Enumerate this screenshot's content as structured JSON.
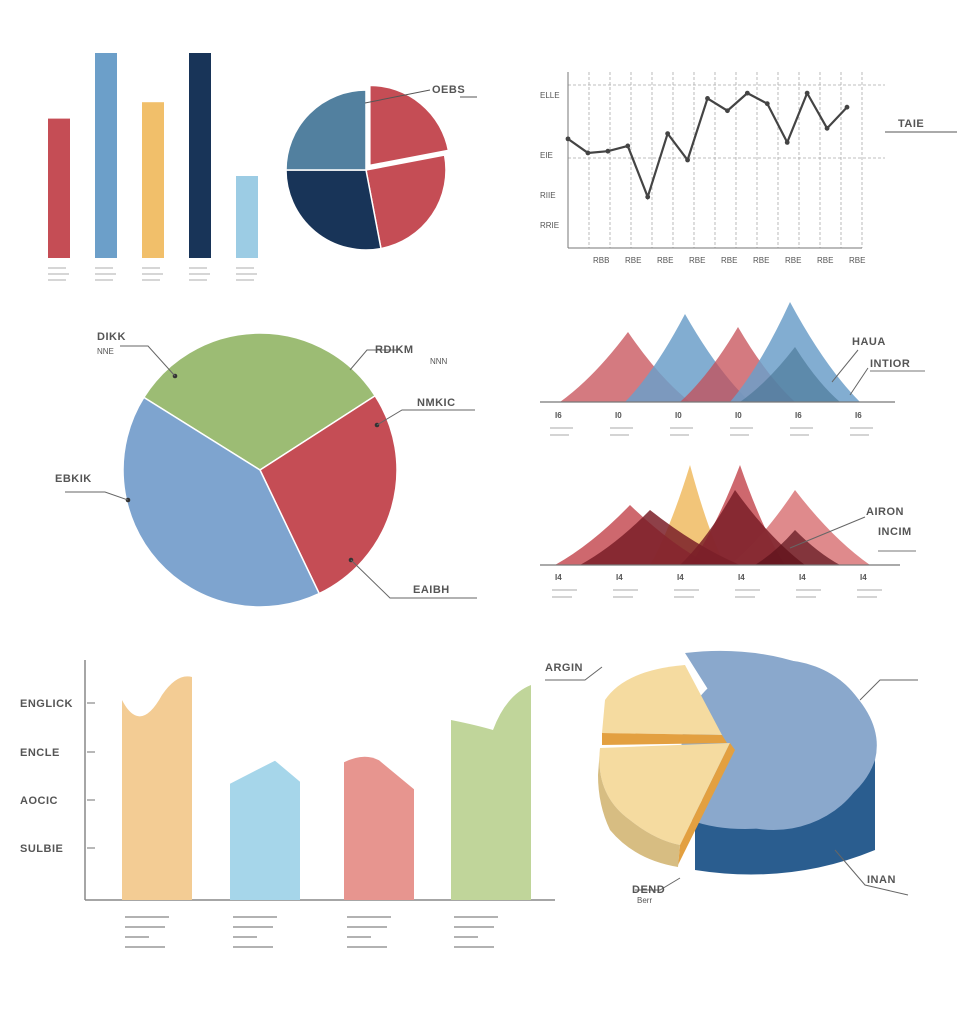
{
  "colors": {
    "red": "#c54d55",
    "blue": "#6c9fc9",
    "yellow": "#f1bf6a",
    "navy": "#183458",
    "lightblue": "#9ccce4",
    "steel": "#52809f",
    "green": "#9cbc74",
    "pieblue": "#7ea4cf",
    "darkred": "#7a1f28",
    "peach": "#f3cc94",
    "sky": "#a6d6ea",
    "salmon": "#e7958f",
    "sage": "#c0d59a",
    "pie3d_top": "#8aa8cc",
    "pie3d_side": "#2a5d8f",
    "pie3d_yellow": "#f5dba0",
    "pie3d_orange": "#e3a040",
    "axis": "#888888",
    "line": "#444444"
  },
  "chart_data": [
    {
      "id": "bar-top-left",
      "type": "bar",
      "categories": [
        "",
        "",
        "",
        "",
        ""
      ],
      "values": [
        68,
        100,
        76,
        100,
        40
      ],
      "ylim": [
        0,
        100
      ],
      "colors": [
        "#c54d55",
        "#6c9fc9",
        "#f1bf6a",
        "#183458",
        "#9ccce4"
      ],
      "grid": false
    },
    {
      "id": "pie-top",
      "type": "pie",
      "labels": [
        "OEBS"
      ],
      "slices": [
        {
          "value": 22,
          "color": "#c54d55",
          "exploded": true
        },
        {
          "value": 25,
          "color": "#c54d55",
          "exploded": false
        },
        {
          "value": 28,
          "color": "#183458",
          "exploded": false
        },
        {
          "value": 25,
          "color": "#52809f",
          "exploded": false
        }
      ]
    },
    {
      "id": "line-top-right",
      "type": "line",
      "title_label": "TAIE",
      "ytick_labels": [
        "ELLE",
        "EIE",
        "RIIE",
        "RRIE"
      ],
      "xtick_labels": [
        "RBB",
        "RBE",
        "RBE",
        "RBE",
        "RBE",
        "RBE",
        "RBE",
        "RBE",
        "RBE"
      ],
      "values": [
        62,
        54,
        55,
        58,
        29,
        65,
        50,
        85,
        78,
        88,
        82,
        60,
        88,
        68,
        80
      ],
      "ylim": [
        0,
        100
      ],
      "grid": true
    },
    {
      "id": "pie-middle",
      "type": "pie",
      "labels": [
        "DIKK",
        "RDIKM",
        "NMKIC",
        "EBKIK",
        "EAIBH"
      ],
      "sublabels": [
        "NNE",
        "NNN"
      ],
      "slices": [
        {
          "value": 32,
          "color": "#9cbc74"
        },
        {
          "value": 27,
          "color": "#c54d55"
        },
        {
          "value": 41,
          "color": "#7ea4cf"
        }
      ]
    },
    {
      "id": "area-middle-right",
      "type": "area",
      "labels": [
        "HAUA",
        "INTIOR"
      ],
      "xtick_labels": [
        "I6",
        "I0",
        "I0",
        "I0",
        "I6",
        "I6"
      ],
      "series": [
        {
          "color": "#c54d55",
          "peaks": [
            0.9,
            0.75
          ]
        },
        {
          "color": "#6c9fc9",
          "peaks": [
            0.85,
            1.0
          ]
        }
      ]
    },
    {
      "id": "area-lower-right",
      "type": "area",
      "labels": [
        "AIRON",
        "INCIM"
      ],
      "xtick_labels": [
        "I4",
        "I4",
        "I4",
        "I4",
        "I4",
        "I4"
      ],
      "series": [
        {
          "color": "#f1bf6a",
          "peak": 0.9
        },
        {
          "color": "#c54d55",
          "peak": 0.95
        },
        {
          "color": "#7a1f28",
          "peak": 0.75
        }
      ]
    },
    {
      "id": "bar-bottom-left",
      "type": "bar",
      "ytick_labels": [
        "ENGLICK",
        "ENCLE",
        "AOCIC",
        "SULBIE"
      ],
      "categories": [
        "",
        "",
        "",
        ""
      ],
      "values": [
        100,
        58,
        82,
        100
      ],
      "ylim": [
        0,
        100
      ],
      "colors": [
        "#f3cc94",
        "#a6d6ea",
        "#e7958f",
        "#c0d59a"
      ]
    },
    {
      "id": "pie3d-bottom-right",
      "type": "pie",
      "labels": [
        "ARGIN",
        "DEND",
        "INAN"
      ],
      "sublabels": [
        "Berr"
      ],
      "slices": [
        {
          "value": 62,
          "color": "#8aa8cc"
        },
        {
          "value": 20,
          "color": "#f5dba0"
        },
        {
          "value": 18,
          "color": "#f5dba0"
        }
      ]
    }
  ],
  "labels": {
    "pie_top_label": "OEBS",
    "line_label": "TAIE",
    "line_y": [
      "ELLE",
      "EIE",
      "RIIE",
      "RRIE"
    ],
    "pie_mid_tl": "DIKK",
    "pie_mid_tl_sub": "NNE",
    "pie_mid_tr": "RDIKM",
    "pie_mid_tr_sub": "NNN",
    "pie_mid_r": "NMKIC",
    "pie_mid_l": "EBKIK",
    "pie_mid_br": "EAIBH",
    "area1_a": "HAUA",
    "area1_b": "INTIOR",
    "area2_a": "AIRON",
    "area2_b": "INCIM",
    "bar2_y": [
      "ENGLICK",
      "ENCLE",
      "AOCIC",
      "SULBIE"
    ],
    "pie3d_tl": "ARGIN",
    "pie3d_tr": "",
    "pie3d_bl": "DEND",
    "pie3d_bl_sub": "Berr",
    "pie3d_br": "INAN"
  }
}
